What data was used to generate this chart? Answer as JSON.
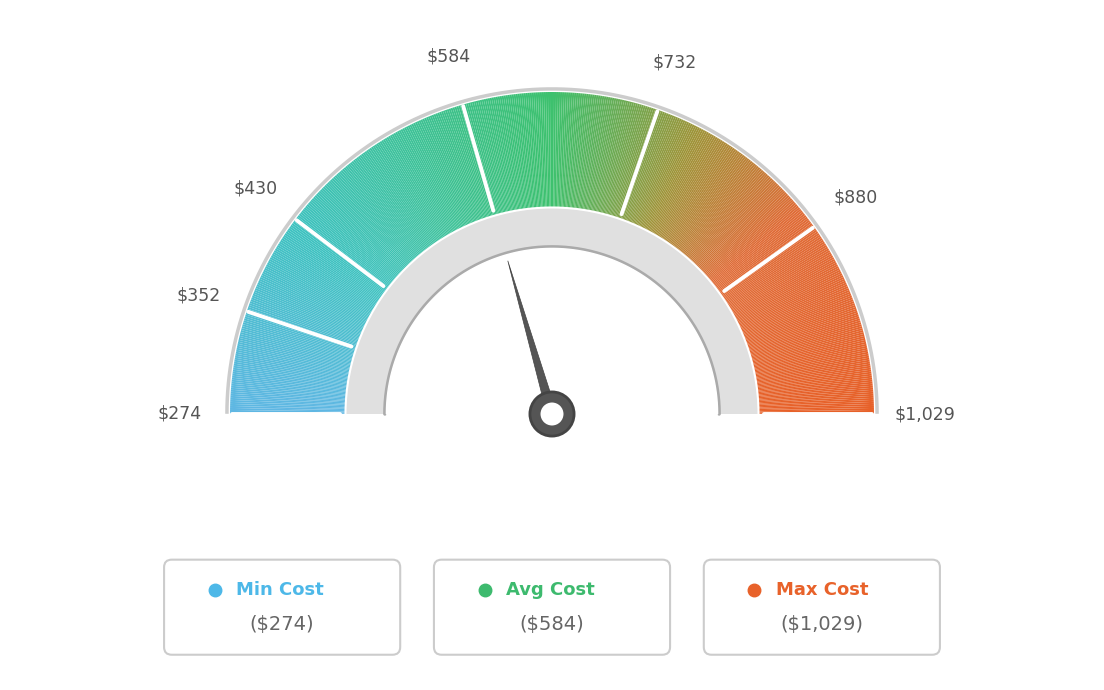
{
  "min_val": 274,
  "avg_val": 584,
  "max_val": 1029,
  "tick_labels": [
    "$274",
    "$352",
    "$430",
    "$584",
    "$732",
    "$880",
    "$1,029"
  ],
  "tick_values": [
    274,
    352,
    430,
    584,
    732,
    880,
    1029
  ],
  "legend": [
    {
      "label": "Min Cost",
      "value": "($274)",
      "color": "#4db8e8"
    },
    {
      "label": "Avg Cost",
      "value": "($584)",
      "color": "#3dba6e"
    },
    {
      "label": "Max Cost",
      "value": "($1,029)",
      "color": "#e8622a"
    }
  ],
  "background_color": "#ffffff",
  "color_stops": [
    [
      0.0,
      [
        0.376,
        0.718,
        0.894
      ]
    ],
    [
      0.2,
      [
        0.243,
        0.761,
        0.753
      ]
    ],
    [
      0.5,
      [
        0.239,
        0.757,
        0.431
      ]
    ],
    [
      0.65,
      [
        0.62,
        0.58,
        0.22
      ]
    ],
    [
      0.78,
      [
        0.878,
        0.42,
        0.212
      ]
    ],
    [
      1.0,
      [
        0.906,
        0.38,
        0.161
      ]
    ]
  ]
}
